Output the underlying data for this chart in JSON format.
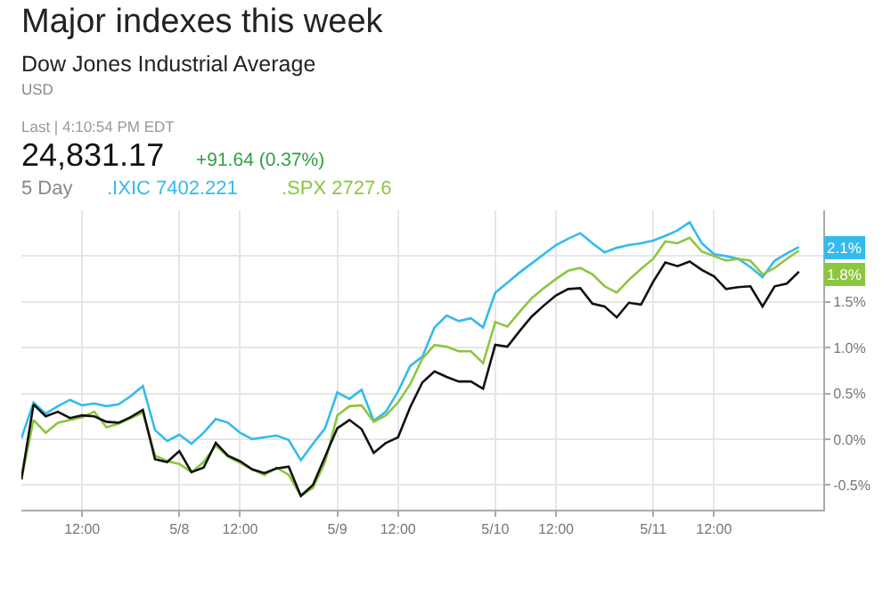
{
  "chart_data": {
    "type": "line",
    "title": "Major indexes this week",
    "subtitle": "Dow Jones Industrial Average",
    "annotations": [
      "USD",
      "Last | 4:10:54 PM EDT",
      "24,831.17",
      "+91.64 (0.37%)",
      "5 Day",
      "2.1%",
      "1.8%"
    ],
    "categories": [
      null,
      null,
      null,
      null,
      null,
      "12:00",
      null,
      null,
      null,
      null,
      null,
      null,
      null,
      "5/8",
      null,
      null,
      null,
      null,
      "12:00",
      null,
      null,
      null,
      null,
      null,
      null,
      null,
      "5/9",
      null,
      null,
      null,
      null,
      "12:00",
      null,
      null,
      null,
      null,
      null,
      null,
      null,
      "5/10",
      null,
      null,
      null,
      null,
      "12:00",
      null,
      null,
      null,
      null,
      null,
      null,
      null,
      "5/11",
      null,
      null,
      null,
      null,
      "12:00",
      null,
      null,
      null,
      null,
      null,
      null,
      null
    ],
    "ylim": [
      -0.77,
      2.5
    ],
    "yticks": [
      {
        "value": -0.5,
        "label": "-0.5%"
      },
      {
        "value": 0,
        "label": "0.0%"
      },
      {
        "value": 0.5,
        "label": "0.5%"
      },
      {
        "value": 1,
        "label": "1.0%"
      },
      {
        "value": 1.5,
        "label": "1.5%"
      },
      {
        "value": 2,
        "label": null
      }
    ],
    "grid": true,
    "marker": "none",
    "line_style": "solid",
    "series": [
      {
        "name": ".IXIC 7402.221",
        "color": "#33bbee",
        "values": [
          0.01,
          0.4,
          0.28,
          0.36,
          0.43,
          0.37,
          0.39,
          0.36,
          0.38,
          0.47,
          0.58,
          0.1,
          -0.02,
          0.05,
          -0.05,
          0.07,
          0.22,
          0.18,
          0.07,
          0,
          0.02,
          0.04,
          -0.01,
          -0.23,
          -0.05,
          0.12,
          0.51,
          0.44,
          0.54,
          0.2,
          0.3,
          0.52,
          0.8,
          0.9,
          1.22,
          1.35,
          1.29,
          1.32,
          1.22,
          1.6,
          1.71,
          1.82,
          1.92,
          2.02,
          2.12,
          2.19,
          2.25,
          2.14,
          2.04,
          2.09,
          2.12,
          2.14,
          2.17,
          2.22,
          2.28,
          2.37,
          2.14,
          2.02,
          2,
          1.97,
          1.88,
          1.77,
          1.95,
          2.03,
          2.1
        ]
      },
      {
        "name": ".SPX 2727.6",
        "color": "#8cc63f",
        "values": [
          -0.44,
          0.21,
          0.07,
          0.18,
          0.21,
          0.24,
          0.3,
          0.13,
          0.17,
          0.23,
          0.29,
          -0.18,
          -0.24,
          -0.27,
          -0.36,
          -0.25,
          -0.07,
          -0.19,
          -0.26,
          -0.33,
          -0.39,
          -0.31,
          -0.39,
          -0.62,
          -0.53,
          -0.25,
          0.26,
          0.36,
          0.37,
          0.19,
          0.26,
          0.4,
          0.6,
          0.88,
          1.03,
          1.01,
          0.96,
          0.96,
          0.83,
          1.28,
          1.23,
          1.39,
          1.54,
          1.65,
          1.75,
          1.84,
          1.87,
          1.8,
          1.67,
          1.6,
          1.74,
          1.86,
          1.97,
          2.16,
          2.14,
          2.2,
          2.05,
          2,
          1.95,
          1.97,
          1.95,
          1.8,
          1.87,
          1.97,
          2.06
        ]
      },
      {
        "color": "#111111",
        "values": [
          -0.44,
          0.38,
          0.25,
          0.3,
          0.23,
          0.26,
          0.25,
          0.19,
          0.18,
          0.24,
          0.32,
          -0.22,
          -0.25,
          -0.13,
          -0.36,
          -0.31,
          -0.04,
          -0.18,
          -0.24,
          -0.33,
          -0.37,
          -0.32,
          -0.3,
          -0.62,
          -0.5,
          -0.19,
          0.12,
          0.21,
          0.11,
          -0.15,
          -0.04,
          0.02,
          0.35,
          0.62,
          0.74,
          0.68,
          0.63,
          0.63,
          0.55,
          1.03,
          1.01,
          1.18,
          1.34,
          1.46,
          1.57,
          1.64,
          1.65,
          1.48,
          1.45,
          1.33,
          1.49,
          1.47,
          1.72,
          1.93,
          1.89,
          1.94,
          1.85,
          1.78,
          1.64,
          1.66,
          1.67,
          1.45,
          1.67,
          1.7,
          1.83
        ]
      }
    ]
  }
}
